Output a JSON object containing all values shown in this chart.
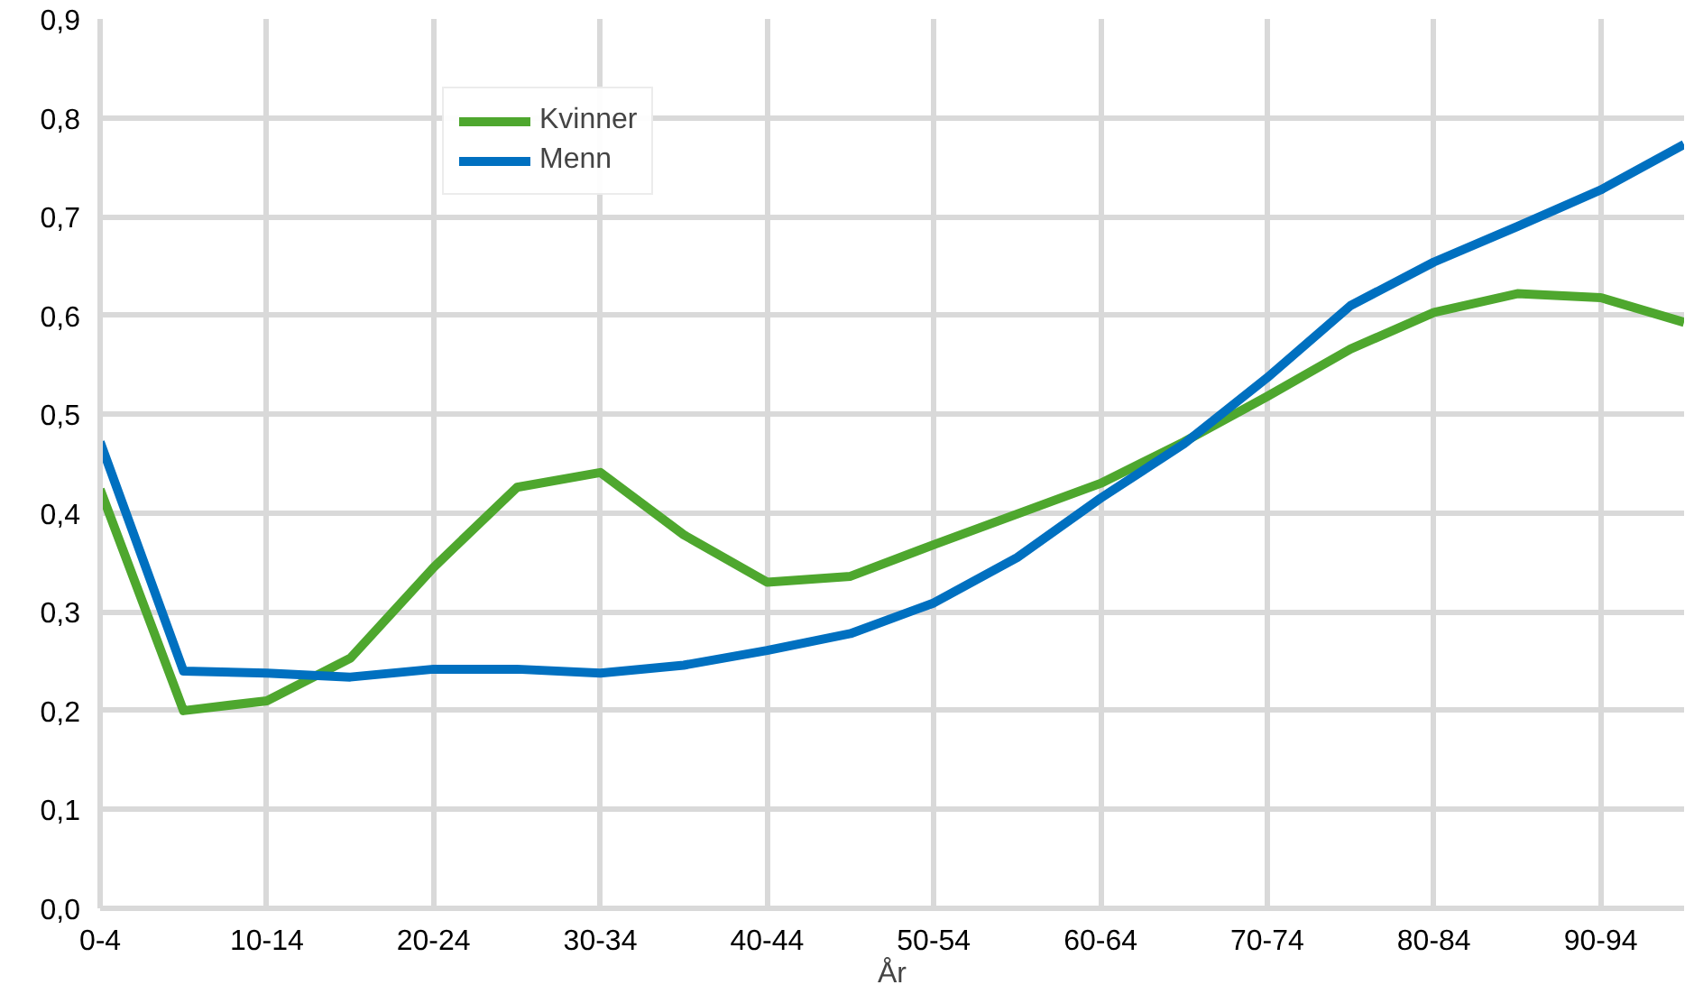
{
  "chart_data": {
    "type": "line",
    "xlabel": "År",
    "categories": [
      "0-4",
      null,
      "10-14",
      null,
      "20-24",
      null,
      "30-34",
      null,
      "40-44",
      null,
      "50-54",
      null,
      "60-64",
      null,
      "70-74",
      null,
      "80-84",
      null,
      "90-94",
      null
    ],
    "series": [
      {
        "name": "Kvinner",
        "color": "#4ea72e",
        "values": [
          0.424,
          0.2,
          0.21,
          0.253,
          0.345,
          0.426,
          0.441,
          0.378,
          0.33,
          0.336,
          0.368,
          0.399,
          0.43,
          0.472,
          0.518,
          0.566,
          0.603,
          0.622,
          0.618,
          0.593
        ]
      },
      {
        "name": "Menn",
        "color": "#0070c0",
        "values": [
          0.472,
          0.24,
          0.238,
          0.234,
          0.242,
          0.242,
          0.238,
          0.246,
          0.261,
          0.278,
          0.309,
          0.355,
          0.415,
          0.47,
          0.537,
          0.61,
          0.654,
          0.69,
          0.727,
          0.773
        ]
      }
    ],
    "ylim": [
      0,
      0.9
    ],
    "yticks": [
      {
        "value": 0,
        "label": "0,0"
      },
      {
        "value": 0.1,
        "label": "0,1"
      },
      {
        "value": 0.2,
        "label": "0,2"
      },
      {
        "value": 0.3,
        "label": "0,3"
      },
      {
        "value": 0.4,
        "label": "0,4"
      },
      {
        "value": 0.5,
        "label": "0,5"
      },
      {
        "value": 0.6,
        "label": "0,6"
      },
      {
        "value": 0.7,
        "label": "0,7"
      },
      {
        "value": 0.8,
        "label": "0,8"
      },
      {
        "value": 0.9,
        "label": "0,9"
      }
    ],
    "grid": true,
    "legend": "top left",
    "marker": "none",
    "line_style": "solid"
  }
}
